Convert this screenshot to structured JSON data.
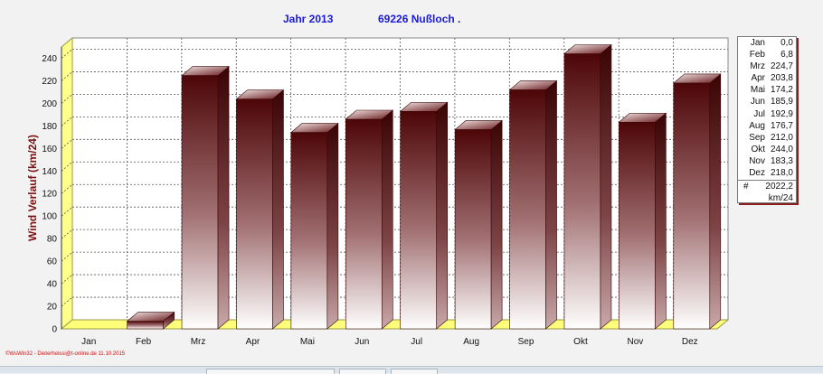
{
  "header": {
    "year_label": "Jahr  2013",
    "location_label": "69226 Nußloch ."
  },
  "footer": {
    "note": "©WsWin32 - Dieterheissi@t-online.de  11.10.2015"
  },
  "legend": {
    "rows": [
      {
        "month": "Jan",
        "value": "0,0"
      },
      {
        "month": "Feb",
        "value": "6,8"
      },
      {
        "month": "Mrz",
        "value": "224,7"
      },
      {
        "month": "Apr",
        "value": "203,8"
      },
      {
        "month": "Mai",
        "value": "174,2"
      },
      {
        "month": "Jun",
        "value": "185,9"
      },
      {
        "month": "Jul",
        "value": "192,9"
      },
      {
        "month": "Aug",
        "value": "176,7"
      },
      {
        "month": "Sep",
        "value": "212,0"
      },
      {
        "month": "Okt",
        "value": "244,0"
      },
      {
        "month": "Nov",
        "value": "183,3"
      },
      {
        "month": "Dez",
        "value": "218,0"
      }
    ],
    "total_symbol": "#",
    "total_value": "2022,2",
    "total_unit": "km/24"
  },
  "colors": {
    "bar_top": "#4d0608",
    "bar_bottom": "#ffffff",
    "floor": "#fffe7a",
    "wall_left": "#ffff8c",
    "title_blue": "#1a1adc",
    "ylabel_red": "#7a1010"
  },
  "chart_data": {
    "type": "bar",
    "title": "Jahr  2013            69226 Nußloch .",
    "xlabel": "",
    "ylabel": "Wind Verlauf  (km/24)",
    "categories": [
      "Jan",
      "Feb",
      "Mrz",
      "Apr",
      "Mai",
      "Jun",
      "Jul",
      "Aug",
      "Sep",
      "Okt",
      "Nov",
      "Dez"
    ],
    "values": [
      0.0,
      6.8,
      224.7,
      203.8,
      174.2,
      185.9,
      192.9,
      176.7,
      212.0,
      244.0,
      183.3,
      218.0
    ],
    "ylim": [
      0,
      250
    ],
    "yticks": [
      0,
      20,
      40,
      60,
      80,
      100,
      120,
      140,
      160,
      180,
      200,
      220,
      240
    ],
    "grid": true,
    "legend_position": "right"
  }
}
